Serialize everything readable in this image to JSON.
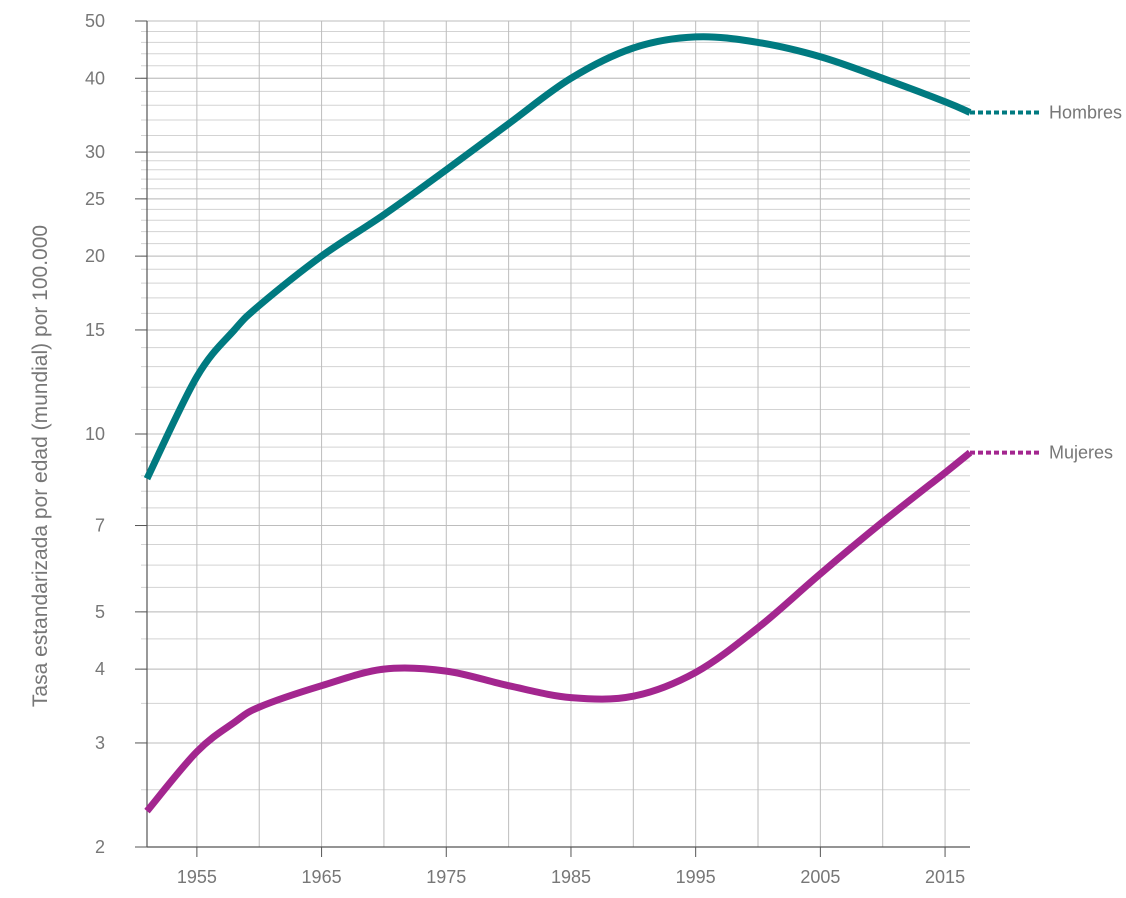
{
  "chart_data": {
    "type": "line",
    "title": "",
    "xlabel": "",
    "ylabel": "Tasa estandarizada por edad (mundial) por 100.000",
    "yscale": "log",
    "ylim": [
      2,
      50
    ],
    "xlim": [
      1951,
      2017
    ],
    "grid": true,
    "x_ticks": [
      1955,
      1965,
      1975,
      1985,
      1995,
      2005,
      2015
    ],
    "x_tick_labels": [
      "1955",
      "1965",
      "1975",
      "1985",
      "1995",
      "2005",
      "2015"
    ],
    "y_ticks": [
      2,
      3,
      4,
      5,
      7,
      10,
      15,
      20,
      25,
      30,
      40,
      50
    ],
    "y_tick_labels": [
      "2",
      "3",
      "4",
      "5",
      "7",
      "10",
      "15",
      "20",
      "25",
      "30",
      "40",
      "50"
    ],
    "series": [
      {
        "name": "Hombres",
        "color": "#007a80",
        "projection": "dotted",
        "x": [
          1951,
          1955,
          1958,
          1960,
          1965,
          1970,
          1975,
          1980,
          1985,
          1990,
          1995,
          2000,
          2005,
          2010,
          2015,
          2017
        ],
        "y": [
          8.4,
          12.5,
          15.0,
          16.5,
          20.0,
          23.5,
          28.0,
          33.5,
          40.0,
          45.0,
          47.0,
          46.0,
          43.5,
          40.0,
          36.5,
          35.0
        ]
      },
      {
        "name": "Mujeres",
        "color": "#a3268f",
        "projection": "dotted",
        "x": [
          1951,
          1955,
          1958,
          1960,
          1965,
          1970,
          1975,
          1980,
          1985,
          1990,
          1995,
          2000,
          2005,
          2010,
          2015,
          2017
        ],
        "y": [
          2.3,
          2.9,
          3.25,
          3.45,
          3.75,
          4.0,
          3.97,
          3.75,
          3.58,
          3.6,
          3.95,
          4.7,
          5.8,
          7.1,
          8.6,
          9.3
        ]
      }
    ]
  }
}
